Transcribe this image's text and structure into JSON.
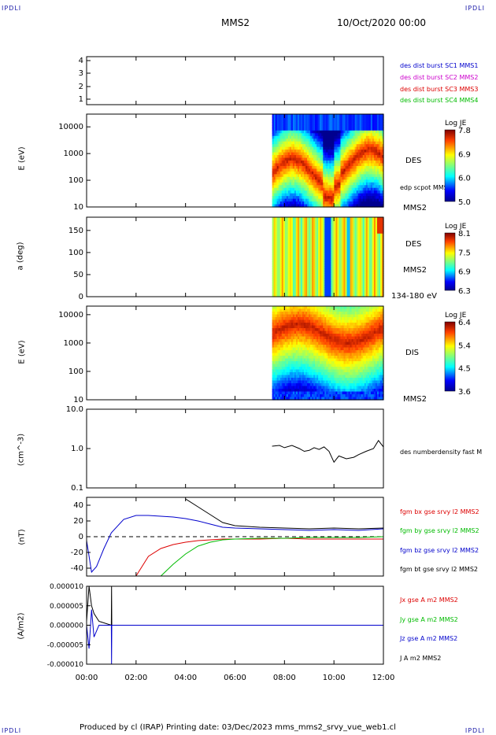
{
  "corners": {
    "tl": "IPDLI",
    "tr": "IPDLI",
    "bl": "IPDLI",
    "br": "IPDLI"
  },
  "header": {
    "spacecraft": "MMS2",
    "date": "10/Oct/2020 00:00"
  },
  "footer": {
    "text": "Produced by cl (IRAP)   Printing date: 03/Dec/2023   mms_mms2_srvy_vue_web1.cl"
  },
  "time_axis": {
    "ticks": [
      "00:00",
      "02:00",
      "04:00",
      "06:00",
      "08:00",
      "10:00",
      "12:00"
    ]
  },
  "colors": {
    "sc1": "#0000cc",
    "sc2": "#cc00cc",
    "sc3": "#dd0000",
    "sc4": "#00bb00",
    "black": "#000000"
  },
  "panels": {
    "burst": {
      "ticks": [
        "4",
        "3",
        "2",
        "1"
      ],
      "legend": [
        "des dist burst SC1 MMS1",
        "des dist burst SC2 MMS2",
        "des dist burst SC3 MMS3",
        "des dist burst SC4 MMS4"
      ]
    },
    "des_energy": {
      "ylabel": "E (eV)",
      "ticks": [
        "10000",
        "1000",
        "100",
        "10"
      ],
      "label": "DES",
      "sublabel": "edp scpot MMS2",
      "footlabel": "MMS2",
      "cbar": {
        "title": "Log JE",
        "ticks": [
          "7.8",
          "6.9",
          "6.0",
          "5.0"
        ]
      }
    },
    "des_pitch": {
      "ylabel": "a (deg)",
      "ticks": [
        "150",
        "100",
        "50",
        "0"
      ],
      "label": "DES",
      "sublabel": "MMS2",
      "footlabel": "134-180 eV",
      "cbar": {
        "title": "Log JE",
        "ticks": [
          "8.1",
          "7.5",
          "6.9",
          "6.3"
        ]
      }
    },
    "dis_energy": {
      "ylabel": "E (eV)",
      "ticks": [
        "10000",
        "1000",
        "100",
        "10"
      ],
      "label": "DIS",
      "footlabel": "MMS2",
      "cbar": {
        "title": "Log JE",
        "ticks": [
          "6.4",
          "5.4",
          "4.5",
          "3.6"
        ]
      }
    },
    "density": {
      "ylabel": "(cm^-3)",
      "ticks": [
        "10.0",
        "1.0",
        "0.1"
      ],
      "legend": "des numberdensity fast M"
    },
    "bfield": {
      "ylabel": "(nT)",
      "ticks": [
        "40",
        "20",
        "0",
        "-20",
        "-40"
      ],
      "legend": [
        "fgm bx gse srvy l2 MMS2",
        "fgm by gse srvy l2 MMS2",
        "fgm bz gse srvy l2 MMS2",
        "fgm bt gse srvy l2 MMS2"
      ]
    },
    "current": {
      "ylabel": "(A/m2)",
      "ticks": [
        "0.000010",
        "0.000005",
        "0.000000",
        "-0.000005",
        "-0.000010"
      ],
      "legend": [
        "Jx gse A m2 MMS2",
        "Jy gse A m2 MMS2",
        "Jz gse A m2 MMS2",
        "J A m2 MMS2"
      ]
    }
  },
  "chart_data": [
    {
      "type": "line",
      "title": "des dist burst",
      "ylim": [
        0.5,
        4.5
      ],
      "x": [],
      "series": []
    },
    {
      "type": "heatmap",
      "ylabel": "E (eV)",
      "yscale": "log",
      "ylim": [
        10,
        30000
      ],
      "data_start": "07:30",
      "data_end": "12:00",
      "colorbar": "Log JE",
      "crange": [
        5.0,
        7.8
      ]
    },
    {
      "type": "heatmap",
      "ylabel": "a (deg)",
      "ylim": [
        0,
        180
      ],
      "data_start": "07:30",
      "data_end": "12:00",
      "colorbar": "Log JE",
      "crange": [
        6.3,
        8.1
      ]
    },
    {
      "type": "heatmap",
      "ylabel": "E (eV)",
      "yscale": "log",
      "ylim": [
        10,
        20000
      ],
      "data_start": "07:30",
      "data_end": "12:00",
      "colorbar": "Log JE",
      "crange": [
        3.6,
        6.4
      ]
    },
    {
      "type": "line",
      "ylabel": "(cm^-3)",
      "yscale": "log",
      "ylim": [
        0.1,
        10
      ],
      "x_hours": [
        7.5,
        7.8,
        8.0,
        8.3,
        8.6,
        8.8,
        9.0,
        9.2,
        9.4,
        9.6,
        9.8,
        10.0,
        10.2,
        10.5,
        10.8,
        11.0,
        11.3,
        11.6,
        11.8,
        12.0
      ],
      "series": [
        {
          "name": "des numberdensity fast M",
          "values": [
            1.15,
            1.2,
            1.05,
            1.2,
            1.0,
            0.85,
            0.9,
            1.05,
            0.95,
            1.1,
            0.85,
            0.45,
            0.65,
            0.55,
            0.6,
            0.7,
            0.85,
            1.0,
            1.6,
            1.1
          ]
        }
      ]
    },
    {
      "type": "line",
      "ylabel": "(nT)",
      "ylim": [
        -50,
        50
      ],
      "x_hours": [
        0,
        0.2,
        0.4,
        0.7,
        1.0,
        1.5,
        2.0,
        2.5,
        3.0,
        3.5,
        4.0,
        4.5,
        5.0,
        5.5,
        6.0,
        7.0,
        8.0,
        9.0,
        10.0,
        11.0,
        12.0
      ],
      "series": [
        {
          "name": "fgm bx gse srvy l2 MMS2",
          "values": [
            null,
            null,
            null,
            null,
            null,
            null,
            -50,
            -25,
            -15,
            -10,
            -7,
            -5,
            -4,
            -3,
            -3,
            -3,
            -2,
            -3,
            -3,
            -3,
            -3
          ]
        },
        {
          "name": "fgm by gse srvy l2 MMS2",
          "values": [
            null,
            null,
            null,
            null,
            null,
            null,
            null,
            null,
            -50,
            -35,
            -22,
            -12,
            -7,
            -4,
            -3,
            -2,
            -2,
            -1,
            -1,
            -1,
            0
          ]
        },
        {
          "name": "fgm bz gse srvy l2 MMS2",
          "values": [
            -5,
            -45,
            -38,
            -15,
            5,
            22,
            27,
            27,
            26,
            25,
            23,
            20,
            16,
            12,
            11,
            10,
            9,
            8,
            9,
            8,
            10
          ]
        },
        {
          "name": "fgm bt gse srvy l2 MMS2",
          "values": [
            null,
            null,
            null,
            null,
            null,
            null,
            null,
            null,
            null,
            null,
            48,
            38,
            28,
            18,
            14,
            12,
            11,
            10,
            11,
            10,
            11
          ]
        }
      ]
    },
    {
      "type": "line",
      "ylabel": "(A/m2)",
      "ylim": [
        -1e-05,
        1e-05
      ],
      "x_hours": [
        0,
        0.1,
        0.2,
        0.3,
        0.5,
        1.0,
        1.01,
        1.02,
        2,
        4,
        6,
        8,
        10,
        12
      ],
      "series": [
        {
          "name": "J A m2 MMS2",
          "values": [
            1e-06,
            1e-05,
            5e-06,
            3e-06,
            1e-06,
            0,
            1e-05,
            0,
            0,
            0,
            0,
            0,
            0,
            0
          ]
        },
        {
          "name": "Jz gse A m2 MMS2",
          "values": [
            0,
            -6e-06,
            4e-06,
            -3e-06,
            0,
            0,
            -1e-05,
            0,
            0,
            0,
            0,
            0,
            0,
            0
          ]
        }
      ]
    }
  ]
}
